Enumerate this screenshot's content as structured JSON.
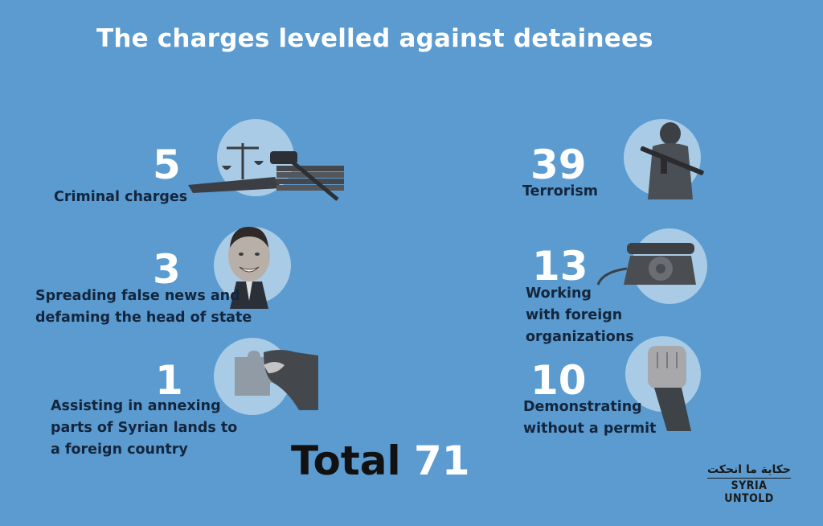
{
  "title": "The charges levelled against detainees",
  "chart_data": {
    "type": "infographic",
    "title": "The charges levelled against detainees",
    "categories": [
      "Criminal charges",
      "Spreading false news and defaming the head of state",
      "Assisting in annexing parts of Syrian lands to a foreign country",
      "Terrorism",
      "Working with foreign organizations",
      "Demonstrating without a permit"
    ],
    "values": [
      5,
      3,
      1,
      39,
      13,
      10
    ],
    "total_label": "Total",
    "total": 71
  },
  "items": [
    {
      "value": "5",
      "lines": [
        "Criminal charges"
      ],
      "icon": "scales-gavel-books-icon"
    },
    {
      "value": "3",
      "lines": [
        "Spreading false news and",
        "defaming the head of state"
      ],
      "icon": "portrait-icon"
    },
    {
      "value": "1",
      "lines": [
        "Assisting in annexing",
        "parts of Syrian lands to",
        "a foreign country"
      ],
      "icon": "puzzle-piece-hand-icon"
    },
    {
      "value": "39",
      "lines": [
        "Terrorism"
      ],
      "icon": "armed-man-icon"
    },
    {
      "value": "13",
      "lines": [
        "Working",
        "with foreign",
        "organizations"
      ],
      "icon": "rotary-telephone-icon"
    },
    {
      "value": "10",
      "lines": [
        "Demonstrating",
        "without a permit"
      ],
      "icon": "raised-fist-icon"
    }
  ],
  "logo": {
    "arabic": "حكاية ما انحكت",
    "english": "SYRIA UNTOLD"
  },
  "colors": {
    "background": "#5b9bd0",
    "circle": "#a9cbe6",
    "label": "#14263d"
  }
}
